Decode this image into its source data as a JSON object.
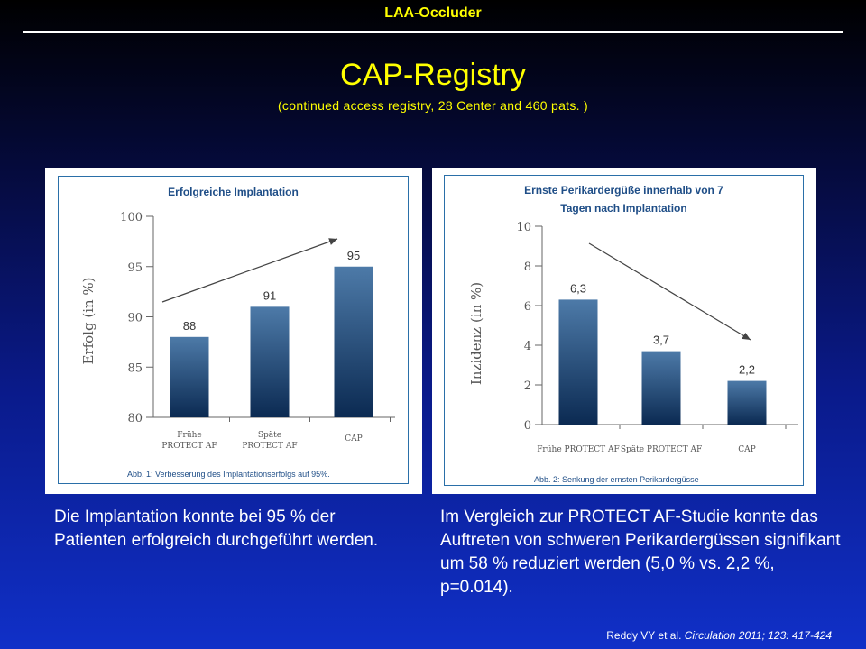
{
  "header": {
    "title": "LAA-Occluder"
  },
  "slide": {
    "title": "CAP-Registry",
    "subtitle": "(continued access registry,  28 Center and  460  pats. )"
  },
  "left_text": "Die Implantation konnte bei 95 % der Patienten erfolgreich durchgeführt werden.",
  "right_text": "Im Vergleich zur PROTECT AF-Studie konnte das Auftreten von schweren Perikardergüssen signifikant um 58 % reduziert werden (5,0 % vs. 2,2 %, p=0.014).",
  "citation": {
    "prefix": "Reddy VY et al. ",
    "journal": "Circulation 2011; 123: 417-424"
  },
  "colors": {
    "bar_top": "#4d7aa8",
    "bar_bottom": "#0b2a52",
    "frame": "#2a6fa8",
    "title": "#1f4e87"
  },
  "chart_data": [
    {
      "type": "bar",
      "title": "Erfolgreiche Implantation",
      "caption": "Abb. 1: Verbesserung des Implantationserfolgs auf 95%.",
      "categories": [
        [
          "Frühe",
          "PROTECT AF"
        ],
        [
          "Späte",
          "PROTECT AF"
        ],
        [
          "CAP"
        ]
      ],
      "values": [
        88,
        91,
        95
      ],
      "value_labels": [
        "88",
        "91",
        "95"
      ],
      "ylabel": "Erfolg (in %)",
      "ylim": [
        80,
        100
      ],
      "yticks": [
        80,
        85,
        90,
        95,
        100
      ],
      "trend": "increasing"
    },
    {
      "type": "bar",
      "title": "Ernste Perikardergüße innerhalb von 7 Tagen nach Implantation",
      "caption": "Abb. 2: Senkung der ernsten Perikardergüsse",
      "categories": [
        [
          "Frühe PROTECT AF"
        ],
        [
          "Späte PROTECT AF"
        ],
        [
          "CAP"
        ]
      ],
      "values": [
        6.3,
        3.7,
        2.2
      ],
      "value_labels": [
        "6,3",
        "3,7",
        "2,2"
      ],
      "ylabel": "Inzidenz (in %)",
      "ylim": [
        0,
        10
      ],
      "yticks": [
        0,
        2,
        4,
        6,
        8,
        10
      ],
      "trend": "decreasing"
    }
  ]
}
